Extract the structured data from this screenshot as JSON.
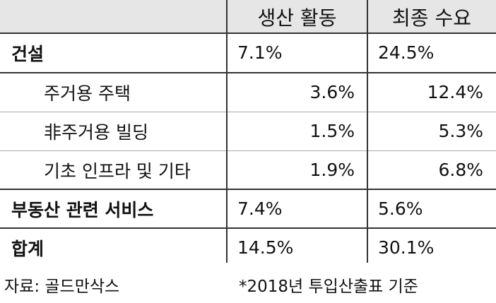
{
  "table": {
    "header": [
      "생산 활동",
      "최종 수요"
    ],
    "rows": [
      {
        "label": "건설",
        "cells": [
          "7.1%",
          "24.5%"
        ]
      },
      {
        "label": "주거용 주택",
        "cells": [
          "3.6%",
          "12.4%"
        ]
      },
      {
        "label": "非주거용 빌딩",
        "cells": [
          "1.5%",
          "5.3%"
        ]
      },
      {
        "label": "기초 인프라 및 기타",
        "cells": [
          "1.9%",
          "6.8%"
        ]
      },
      {
        "label": "부동산 관련 서비스",
        "cells": [
          "7.4%",
          "5.6%"
        ]
      },
      {
        "label": "합계",
        "cells": [
          "14.5%",
          "30.1%"
        ]
      }
    ]
  },
  "footer": {
    "source": "자료: 골드만삭스",
    "note": "*2018년 투입산출표 기준"
  }
}
